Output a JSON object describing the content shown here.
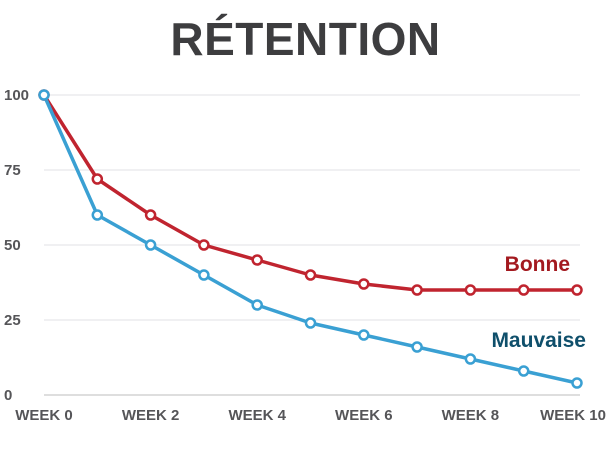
{
  "chart_data": {
    "type": "line",
    "title": "RÉTENTION",
    "x": [
      0,
      1,
      2,
      3,
      4,
      5,
      6,
      7,
      8,
      9,
      10
    ],
    "x_tick_values": [
      0,
      2,
      4,
      6,
      8,
      10
    ],
    "x_tick_labels": [
      "WEEK 0",
      "WEEK 2",
      "WEEK 4",
      "WEEK 6",
      "WEEK 8",
      "WEEK 10"
    ],
    "y_ticks": [
      0,
      25,
      50,
      75,
      100
    ],
    "ylim": [
      0,
      100
    ],
    "xlim": [
      0,
      10
    ],
    "grid": "horizontal",
    "series": [
      {
        "name": "Bonne",
        "color": "#c0242f",
        "values": [
          100,
          72,
          60,
          50,
          45,
          40,
          37,
          35,
          35,
          35,
          35
        ]
      },
      {
        "name": "Mauvaise",
        "color": "#3aa0d3",
        "values": [
          100,
          60,
          50,
          40,
          30,
          24,
          20,
          16,
          12,
          8,
          4
        ]
      }
    ],
    "label_colors": {
      "Bonne": "#a3191f",
      "Mauvaise": "#0f4f6b"
    }
  }
}
